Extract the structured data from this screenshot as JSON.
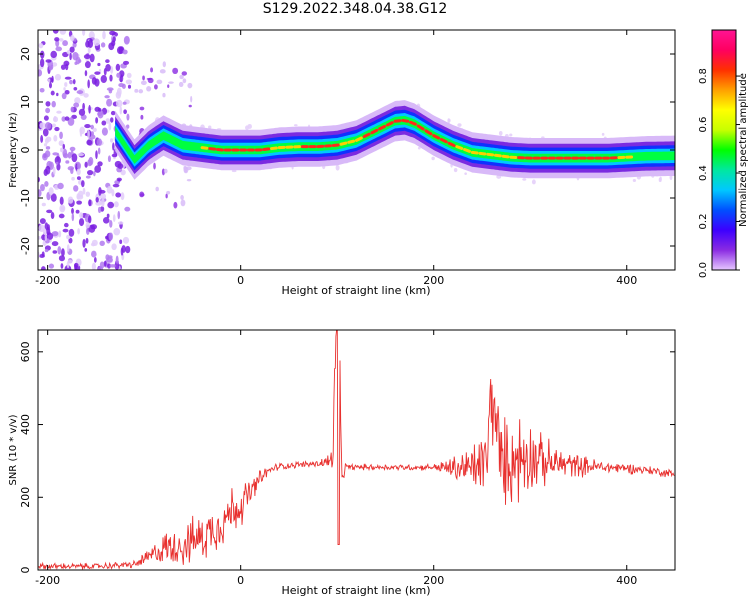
{
  "figure": {
    "title": "S129.2022.348.04.38.G12"
  },
  "chart_data": [
    {
      "type": "heatmap",
      "xlabel": "Height of straight line (km)",
      "ylabel": "Frequency (Hz)",
      "xlim": [
        -210,
        450
      ],
      "ylim": [
        -25,
        25
      ],
      "xticks": [
        -200,
        0,
        200,
        400
      ],
      "yticks": [
        -20,
        -10,
        0,
        10,
        20
      ],
      "ridge_x": [
        -130,
        -110,
        -95,
        -80,
        -60,
        -40,
        -20,
        0,
        20,
        40,
        60,
        80,
        100,
        120,
        140,
        160,
        170,
        180,
        200,
        220,
        240,
        260,
        280,
        300,
        320,
        340,
        360,
        380,
        400,
        420,
        450
      ],
      "ridge_frequency": [
        4,
        -2,
        1,
        3,
        1,
        0.5,
        0,
        0,
        0,
        0.5,
        0.7,
        0.7,
        1,
        2,
        4,
        6,
        6.2,
        5.5,
        3,
        1,
        -0.5,
        -1,
        -1.5,
        -1.7,
        -1.7,
        -1.7,
        -1.7,
        -1.7,
        -1.5,
        -1.3,
        -1.2
      ],
      "colorbar": {
        "label": "Normalized spectral amplitude",
        "ticks": [
          "0.0",
          "0.2",
          "0.4",
          "0.6",
          "0.8"
        ],
        "colors": [
          "#e6c8ff",
          "#8a2be2",
          "#3c00ff",
          "#0050ff",
          "#00c8ff",
          "#00e8a0",
          "#00ff00",
          "#c8ff00",
          "#ffff00",
          "#ffa000",
          "#ff3000",
          "#ff0060",
          "#ff1493"
        ]
      },
      "grid": false
    },
    {
      "type": "line",
      "xlabel": "Height of straight line (km)",
      "ylabel": "SNR (10 * v/v)",
      "xlim": [
        -210,
        450
      ],
      "ylim": [
        0,
        660
      ],
      "xticks": [
        -200,
        0,
        200,
        400
      ],
      "yticks": [
        0,
        200,
        400,
        600
      ],
      "color": "#e8302e",
      "series": [
        {
          "x": [
            -210,
            -150,
            -110,
            -95,
            -80,
            -60,
            -40,
            -20,
            -10,
            0,
            10,
            20,
            30,
            40,
            60,
            80,
            95,
            100,
            105,
            110,
            140,
            180,
            200,
            220,
            240,
            255,
            260,
            270,
            280,
            290,
            300,
            310,
            320,
            340,
            360,
            380,
            400,
            420,
            440,
            450
          ],
          "y": [
            10,
            10,
            15,
            35,
            60,
            70,
            90,
            130,
            160,
            180,
            210,
            250,
            275,
            285,
            290,
            292,
            300,
            660,
            270,
            283,
            283,
            282,
            283,
            280,
            280,
            300,
            490,
            290,
            300,
            310,
            320,
            300,
            295,
            290,
            285,
            282,
            280,
            275,
            268,
            262
          ],
          "spread": [
            10,
            10,
            12,
            30,
            50,
            70,
            80,
            80,
            90,
            70,
            50,
            30,
            15,
            12,
            10,
            12,
            40,
            300,
            40,
            10,
            10,
            10,
            10,
            40,
            80,
            120,
            160,
            150,
            140,
            160,
            120,
            90,
            70,
            45,
            30,
            20,
            18,
            15,
            15,
            15
          ]
        }
      ],
      "grid": false
    }
  ]
}
